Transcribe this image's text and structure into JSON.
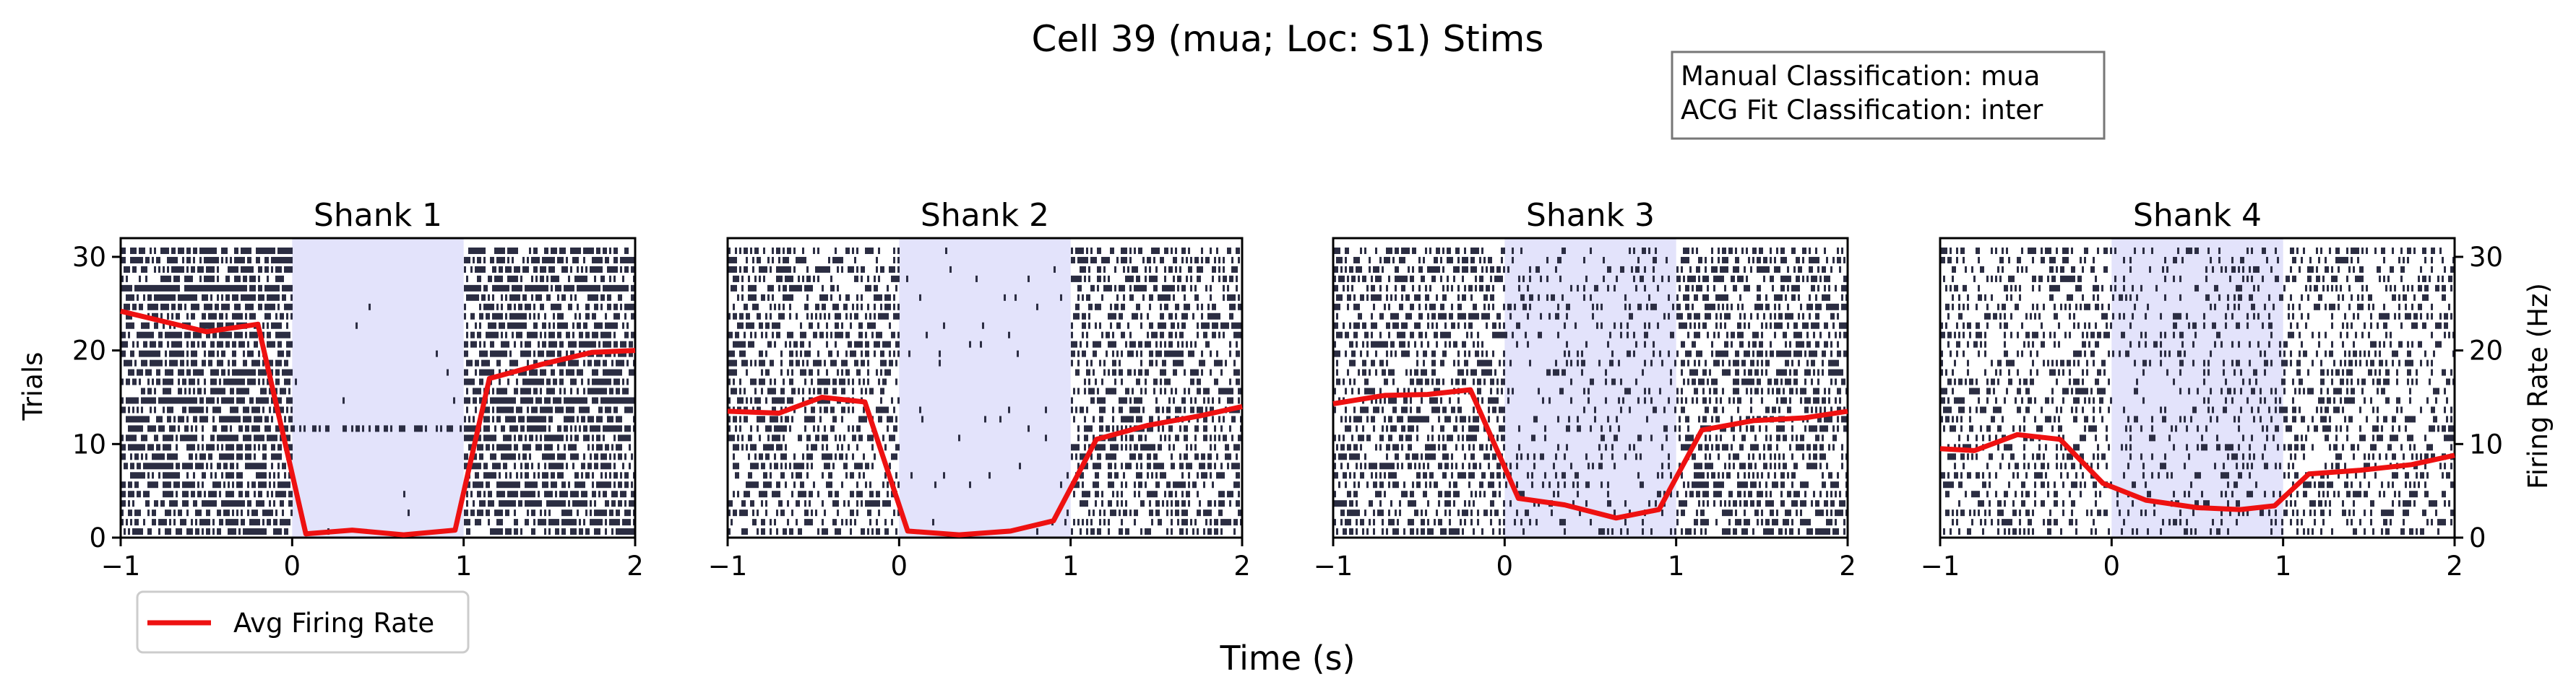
{
  "figure": {
    "suptitle": "Cell 39 (mua; Loc: S1) Stims",
    "info_box": {
      "line1": "Manual Classification: mua",
      "line2": "ACG Fit Classification: inter"
    },
    "common_xlabel": "Time (s)",
    "left_ylabel": "Trials",
    "right_ylabel": "Firing Rate (Hz)",
    "legend_label": "Avg Firing Rate",
    "legend_placement": "below-left",
    "colors": {
      "spike": "#2b2d42",
      "stim_shade": "#e3e3fb",
      "rate_line": "#ee1111"
    }
  },
  "chart_data": [
    {
      "type": "line",
      "title": "Shank 1",
      "x_ticks": [
        "−1",
        "0",
        "1",
        "2"
      ],
      "y_ticks": [
        "0",
        "10",
        "20",
        "30"
      ],
      "xlim": [
        -1,
        2
      ],
      "ylim": [
        0,
        32
      ],
      "stim_window": [
        0,
        1
      ],
      "raster_trials": 31,
      "raster_density": {
        "baseline": 0.62,
        "stim": 0.004
      },
      "series": [
        {
          "name": "Avg Firing Rate",
          "x": [
            -1.0,
            -0.5,
            -0.2,
            0.08,
            0.35,
            0.65,
            0.95,
            1.15,
            1.45,
            1.75,
            2.0
          ],
          "y": [
            24.2,
            22.0,
            22.8,
            0.4,
            0.8,
            0.3,
            0.8,
            17.0,
            18.5,
            19.8,
            20.0
          ]
        }
      ]
    },
    {
      "type": "line",
      "title": "Shank 2",
      "x_ticks": [
        "−1",
        "0",
        "1",
        "2"
      ],
      "y_ticks": [],
      "xlim": [
        -1,
        2
      ],
      "ylim": [
        0,
        32
      ],
      "stim_window": [
        0,
        1
      ],
      "raster_trials": 31,
      "raster_density": {
        "baseline": 0.42,
        "stim": 0.02
      },
      "series": [
        {
          "name": "Avg Firing Rate",
          "x": [
            -1.0,
            -0.7,
            -0.45,
            -0.2,
            0.05,
            0.35,
            0.65,
            0.9,
            1.15,
            1.45,
            1.75,
            2.0
          ],
          "y": [
            13.5,
            13.3,
            15.0,
            14.5,
            0.7,
            0.3,
            0.7,
            1.8,
            10.5,
            12.0,
            13.0,
            14.0
          ]
        }
      ]
    },
    {
      "type": "line",
      "title": "Shank 3",
      "x_ticks": [
        "−1",
        "0",
        "1",
        "2"
      ],
      "y_ticks": [],
      "xlim": [
        -1,
        2
      ],
      "ylim": [
        0,
        32
      ],
      "stim_window": [
        0,
        1
      ],
      "raster_trials": 31,
      "raster_density": {
        "baseline": 0.45,
        "stim": 0.16
      },
      "series": [
        {
          "name": "Avg Firing Rate",
          "x": [
            -1.0,
            -0.7,
            -0.45,
            -0.2,
            0.08,
            0.35,
            0.65,
            0.9,
            1.15,
            1.45,
            1.75,
            2.0
          ],
          "y": [
            14.3,
            15.2,
            15.3,
            15.8,
            4.2,
            3.5,
            2.1,
            3.0,
            11.5,
            12.5,
            12.8,
            13.5
          ]
        }
      ]
    },
    {
      "type": "line",
      "title": "Shank 4",
      "x_ticks": [
        "−1",
        "0",
        "1",
        "2"
      ],
      "y_ticks": [
        "0",
        "10",
        "20",
        "30"
      ],
      "xlim": [
        -1,
        2
      ],
      "ylim": [
        0,
        32
      ],
      "stim_window": [
        0,
        1
      ],
      "raster_trials": 31,
      "raster_density": {
        "baseline": 0.33,
        "stim": 0.17
      },
      "series": [
        {
          "name": "Avg Firing Rate",
          "x": [
            -1.0,
            -0.8,
            -0.55,
            -0.3,
            -0.05,
            0.2,
            0.5,
            0.75,
            0.95,
            1.15,
            1.45,
            1.75,
            2.0
          ],
          "y": [
            9.5,
            9.3,
            11.0,
            10.5,
            5.8,
            4.0,
            3.2,
            3.0,
            3.4,
            6.8,
            7.2,
            7.8,
            8.8
          ]
        }
      ]
    }
  ]
}
